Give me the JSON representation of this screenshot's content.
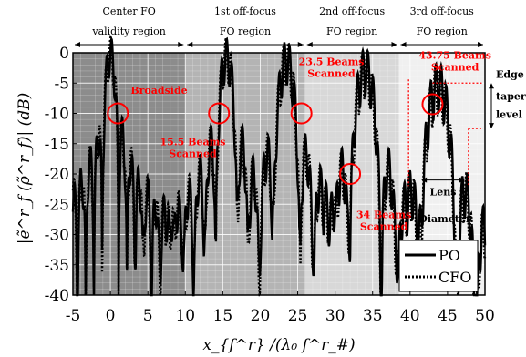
{
  "chart_data": {
    "type": "line",
    "xlabel": "x_{f^r} /(λ₀ f^r_#)",
    "ylabel": "|ẽ^r_f (ρ̃^r_f)| (dB)",
    "xlim": [
      -5,
      50
    ],
    "ylim": [
      -40,
      0
    ],
    "x_ticks": [
      "-5",
      "0",
      "5",
      "10",
      "15",
      "20",
      "25",
      "30",
      "35",
      "40",
      "45",
      "50"
    ],
    "y_ticks": [
      "0",
      "-5",
      "-10",
      "-15",
      "-20",
      "-25",
      "-30",
      "-35",
      "-40"
    ],
    "grid": true,
    "legend_position": "bottom-right",
    "regions": [
      {
        "line1": "Center FO",
        "line2": "validity region",
        "x_range": [
          -5,
          10
        ],
        "fill": "#8c8c8c"
      },
      {
        "line1": "1st off-focus",
        "line2": "FO region",
        "x_range": [
          10,
          26
        ],
        "fill": "#b4b4b4"
      },
      {
        "line1": "2nd off-focus",
        "line2": "FO region",
        "x_range": [
          26,
          38.5
        ],
        "fill": "#d8d8d8"
      },
      {
        "line1": "3rd off-focus",
        "line2": "FO region",
        "x_range": [
          38.5,
          50
        ],
        "fill": "#f0f0f0"
      }
    ],
    "series": [
      {
        "name": "PO",
        "style": "solid",
        "beams": [
          {
            "peak_x": 0,
            "peak_db": 0
          },
          {
            "peak_x": 15.5,
            "peak_db": -0.5
          },
          {
            "peak_x": 23.5,
            "peak_db": -1.0
          },
          {
            "peak_x": 34,
            "peak_db": -2.5
          },
          {
            "peak_x": 43.75,
            "peak_db": -5
          }
        ]
      },
      {
        "name": "CFO",
        "style": "dotted",
        "beams": [
          {
            "peak_x": 0,
            "peak_db": 0
          },
          {
            "peak_x": 15.5,
            "peak_db": -0.5
          },
          {
            "peak_x": 23.5,
            "peak_db": -1.0
          },
          {
            "peak_x": 34,
            "peak_db": -3.0
          },
          {
            "peak_x": 43.75,
            "peak_db": -5.5
          }
        ]
      }
    ],
    "annotations": [
      {
        "text": "Broadside",
        "marker_x": 1,
        "marker_y": -10
      },
      {
        "text": "15.5 Beams Scanned",
        "marker_x": 14.5,
        "marker_y": -10
      },
      {
        "text": "23.5 Beams Scanned",
        "marker_x": 25.5,
        "marker_y": -10
      },
      {
        "text": "34 Beams Scanned",
        "marker_x": 32,
        "marker_y": -20
      },
      {
        "text": "43.75 Beams Scanned",
        "marker_x": 43,
        "marker_y": -8.5
      }
    ],
    "edge_taper_label": [
      "Edge",
      "taper",
      "level"
    ],
    "lens_label": [
      "Lens",
      "Diameter"
    ]
  },
  "colors": {
    "annotation": "#ff0000",
    "curve": "#000000",
    "grid": "#ffffff"
  }
}
